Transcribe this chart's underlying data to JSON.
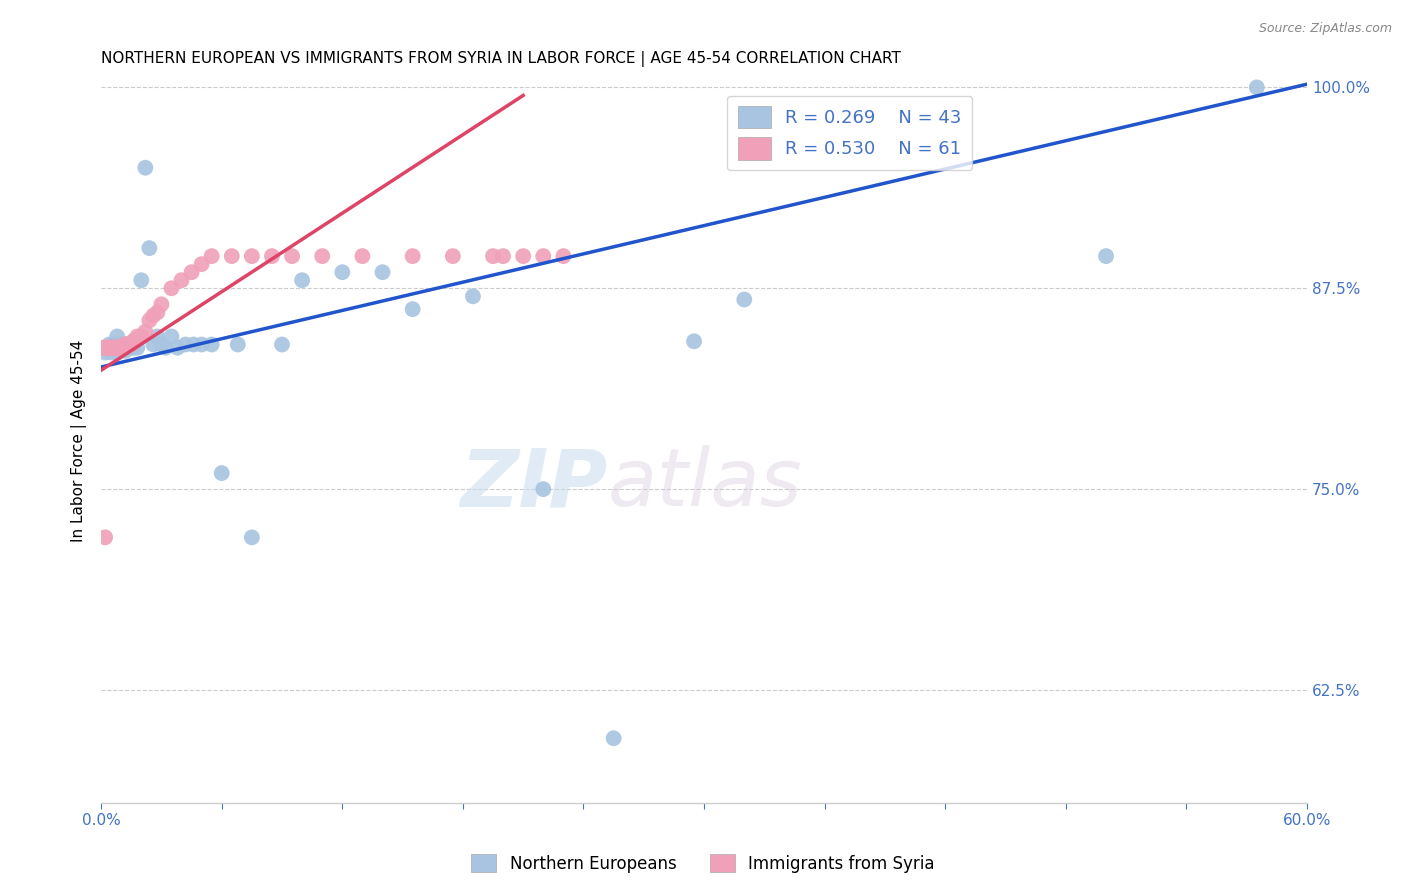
{
  "title": "NORTHERN EUROPEAN VS IMMIGRANTS FROM SYRIA IN LABOR FORCE | AGE 45-54 CORRELATION CHART",
  "source": "Source: ZipAtlas.com",
  "ylabel": "In Labor Force | Age 45-54",
  "xlim": [
    0.0,
    0.6
  ],
  "ylim": [
    0.555,
    1.005
  ],
  "xtick_positions": [
    0.0,
    0.06,
    0.12,
    0.18,
    0.24,
    0.3,
    0.36,
    0.42,
    0.48,
    0.54,
    0.6
  ],
  "xtick_labels": [
    "0.0%",
    "",
    "",
    "",
    "",
    "",
    "",
    "",
    "",
    "",
    "60.0%"
  ],
  "yticks": [
    0.625,
    0.75,
    0.875,
    1.0
  ],
  "yticklabels": [
    "62.5%",
    "75.0%",
    "87.5%",
    "100.0%"
  ],
  "watermark_zip": "ZIP",
  "watermark_atlas": "atlas",
  "blue_color": "#a8c4e0",
  "pink_color": "#f0a0b8",
  "blue_line_color": "#2255cc",
  "pink_line_color": "#dd4466",
  "legend_R_blue": "R = 0.269",
  "legend_N_blue": "N = 43",
  "legend_R_pink": "R = 0.530",
  "legend_N_pink": "N = 61",
  "blue_line_x0": 0.0,
  "blue_line_y0": 0.826,
  "blue_line_x1": 0.6,
  "blue_line_y1": 1.002,
  "pink_line_x0": 0.0,
  "pink_line_y0": 0.824,
  "pink_line_x1": 0.21,
  "pink_line_y1": 0.995,
  "blue_x": [
    0.002,
    0.004,
    0.005,
    0.006,
    0.007,
    0.008,
    0.008,
    0.009,
    0.01,
    0.011,
    0.012,
    0.013,
    0.015,
    0.016,
    0.018,
    0.02,
    0.022,
    0.024,
    0.026,
    0.028,
    0.03,
    0.032,
    0.035,
    0.038,
    0.042,
    0.046,
    0.05,
    0.055,
    0.06,
    0.068,
    0.075,
    0.09,
    0.1,
    0.12,
    0.14,
    0.155,
    0.185,
    0.22,
    0.255,
    0.295,
    0.32,
    0.5,
    0.575
  ],
  "blue_y": [
    0.835,
    0.84,
    0.835,
    0.84,
    0.84,
    0.845,
    0.835,
    0.84,
    0.838,
    0.84,
    0.836,
    0.84,
    0.838,
    0.838,
    0.838,
    0.88,
    0.95,
    0.9,
    0.84,
    0.845,
    0.84,
    0.838,
    0.845,
    0.838,
    0.84,
    0.84,
    0.84,
    0.84,
    0.76,
    0.84,
    0.72,
    0.84,
    0.88,
    0.885,
    0.885,
    0.862,
    0.87,
    0.75,
    0.595,
    0.842,
    0.868,
    0.895,
    1.0
  ],
  "pink_x": [
    0.001,
    0.002,
    0.002,
    0.003,
    0.003,
    0.004,
    0.004,
    0.005,
    0.005,
    0.005,
    0.005,
    0.006,
    0.006,
    0.007,
    0.007,
    0.007,
    0.008,
    0.008,
    0.008,
    0.009,
    0.009,
    0.009,
    0.01,
    0.01,
    0.01,
    0.011,
    0.011,
    0.012,
    0.012,
    0.013,
    0.013,
    0.014,
    0.015,
    0.016,
    0.016,
    0.018,
    0.02,
    0.022,
    0.024,
    0.026,
    0.028,
    0.03,
    0.035,
    0.04,
    0.045,
    0.05,
    0.055,
    0.065,
    0.075,
    0.085,
    0.095,
    0.11,
    0.13,
    0.155,
    0.175,
    0.195,
    0.2,
    0.21,
    0.22,
    0.23,
    0.002
  ],
  "pink_y": [
    0.838,
    0.838,
    0.838,
    0.838,
    0.838,
    0.838,
    0.838,
    0.838,
    0.838,
    0.838,
    0.838,
    0.838,
    0.838,
    0.838,
    0.838,
    0.838,
    0.838,
    0.838,
    0.838,
    0.838,
    0.838,
    0.838,
    0.838,
    0.838,
    0.838,
    0.838,
    0.838,
    0.84,
    0.84,
    0.84,
    0.84,
    0.84,
    0.84,
    0.842,
    0.842,
    0.845,
    0.845,
    0.848,
    0.855,
    0.858,
    0.86,
    0.865,
    0.875,
    0.88,
    0.885,
    0.89,
    0.895,
    0.895,
    0.895,
    0.895,
    0.895,
    0.895,
    0.895,
    0.895,
    0.895,
    0.895,
    0.895,
    0.895,
    0.895,
    0.895,
    0.72
  ],
  "title_fontsize": 11,
  "axis_label_color": "#4472c4",
  "grid_color": "#cccccc"
}
